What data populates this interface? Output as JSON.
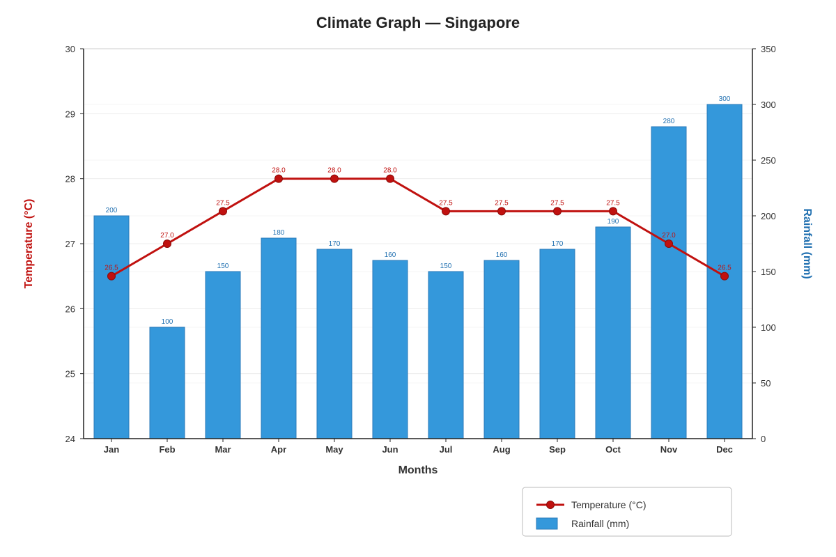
{
  "chart_data": {
    "type": "bar+line",
    "title": "Climate Graph — Singapore",
    "xlabel": "Months",
    "ylabel_left": "Temperature (°C)",
    "ylabel_right": "Rainfall (mm)",
    "categories": [
      "Jan",
      "Feb",
      "Mar",
      "Apr",
      "May",
      "Jun",
      "Jul",
      "Aug",
      "Sep",
      "Oct",
      "Nov",
      "Dec"
    ],
    "ylim_left": [
      24,
      30
    ],
    "yticks_left": [
      24,
      25,
      26,
      27,
      28,
      29,
      30
    ],
    "ylim_right": [
      0,
      350
    ],
    "yticks_right": [
      0,
      50,
      100,
      150,
      200,
      250,
      300,
      350
    ],
    "grid": true,
    "legend_position": "bottom-right",
    "series": [
      {
        "name": "Temperature (°C)",
        "type": "line",
        "axis": "left",
        "color": "#c0110f",
        "values": [
          26.5,
          27.0,
          27.5,
          28.0,
          28.0,
          28.0,
          27.5,
          27.5,
          27.5,
          27.5,
          27.0,
          26.5
        ],
        "labels": [
          "26.5",
          "27.0",
          "27.5",
          "28.0",
          "28.0",
          "28.0",
          "27.5",
          "27.5",
          "27.5",
          "27.5",
          "27.0",
          "26.5"
        ]
      },
      {
        "name": "Rainfall (mm)",
        "type": "bar",
        "axis": "right",
        "color": "#3498db",
        "label_color": "#1f6fb0",
        "values": [
          200,
          100,
          150,
          180,
          170,
          160,
          150,
          160,
          170,
          190,
          280,
          300
        ],
        "labels": [
          "200",
          "100",
          "150",
          "180",
          "170",
          "160",
          "150",
          "160",
          "170",
          "190",
          "280",
          "300"
        ]
      }
    ]
  }
}
